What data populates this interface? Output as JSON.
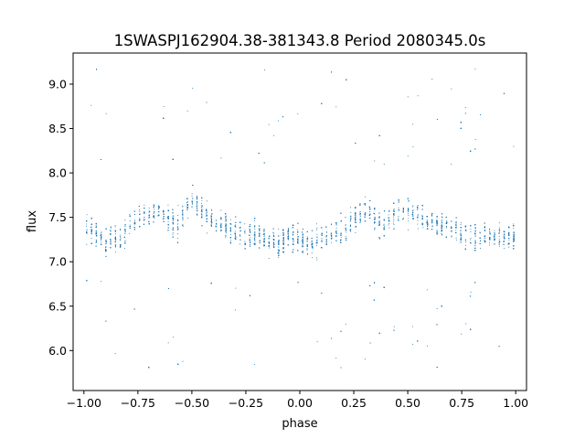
{
  "chart_data": {
    "type": "scatter",
    "title": "1SWASPJ162904.38-381343.8 Period 2080345.0s",
    "xlabel": "phase",
    "ylabel": "flux",
    "xlim": [
      -1.05,
      1.05
    ],
    "ylim": [
      5.55,
      9.35
    ],
    "xticks": [
      -1.0,
      -0.75,
      -0.5,
      -0.25,
      0.0,
      0.25,
      0.5,
      0.75,
      1.0
    ],
    "xtick_labels": [
      "−1.00",
      "−0.75",
      "−0.50",
      "−0.25",
      "0.00",
      "0.25",
      "0.50",
      "0.75",
      "1.00"
    ],
    "yticks": [
      6.0,
      6.5,
      7.0,
      7.5,
      8.0,
      8.5,
      9.0
    ],
    "ytick_labels": [
      "6.0",
      "6.5",
      "7.0",
      "7.5",
      "8.0",
      "8.5",
      "9.0"
    ],
    "grid": false,
    "marker_color": "#1f77b4",
    "series": [
      {
        "x_range": [
          -1.0,
          1.0
        ],
        "y_core_range": [
          6.8,
          8.1
        ],
        "y_outlier_range": [
          5.8,
          9.2
        ],
        "x": [
          -0.98,
          -0.9,
          -0.82,
          -0.74,
          -0.66,
          -0.58,
          -0.5,
          -0.42,
          -0.34,
          -0.26,
          -0.18,
          -0.1,
          -0.02,
          0.06,
          0.14,
          0.22,
          0.3,
          0.38,
          0.46,
          0.54,
          0.62,
          0.7,
          0.78,
          0.86,
          0.94
        ],
        "y": [
          7.4,
          7.2,
          7.3,
          7.5,
          7.6,
          7.4,
          7.7,
          7.5,
          7.4,
          7.3,
          7.3,
          7.2,
          7.3,
          7.2,
          7.3,
          7.4,
          7.6,
          7.4,
          7.6,
          7.5,
          7.4,
          7.4,
          7.3,
          7.3,
          7.3
        ]
      }
    ]
  }
}
